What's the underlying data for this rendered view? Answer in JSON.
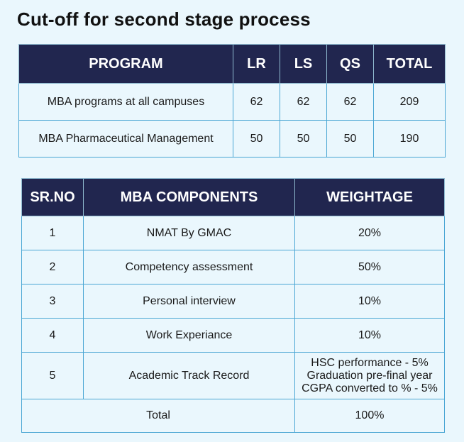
{
  "title": "Cut-off for second stage process",
  "cutoff_table": {
    "headers": [
      "PROGRAM",
      "LR",
      "LS",
      "QS",
      "TOTAL"
    ],
    "rows": [
      [
        "MBA programs at all campuses",
        "62",
        "62",
        "62",
        "209"
      ],
      [
        "MBA Pharmaceutical Management",
        "50",
        "50",
        "50",
        "190"
      ]
    ]
  },
  "components_table": {
    "headers": [
      "SR.NO",
      "MBA COMPONENTS",
      "WEIGHTAGE"
    ],
    "rows": [
      {
        "sr": "1",
        "component": "NMAT By GMAC",
        "weightage": "20%"
      },
      {
        "sr": "2",
        "component": "Competency assessment",
        "weightage": "50%"
      },
      {
        "sr": "3",
        "component": "Personal interview",
        "weightage": "10%"
      },
      {
        "sr": "4",
        "component": "Work Experiance",
        "weightage": "10%"
      },
      {
        "sr": "5",
        "component": "Academic Track Record",
        "weightage_lines": [
          "HSC performance - 5%",
          "Graduation pre-final year",
          "CGPA converted to % - 5%"
        ]
      }
    ],
    "total_label": "Total",
    "total_value": "100%"
  }
}
